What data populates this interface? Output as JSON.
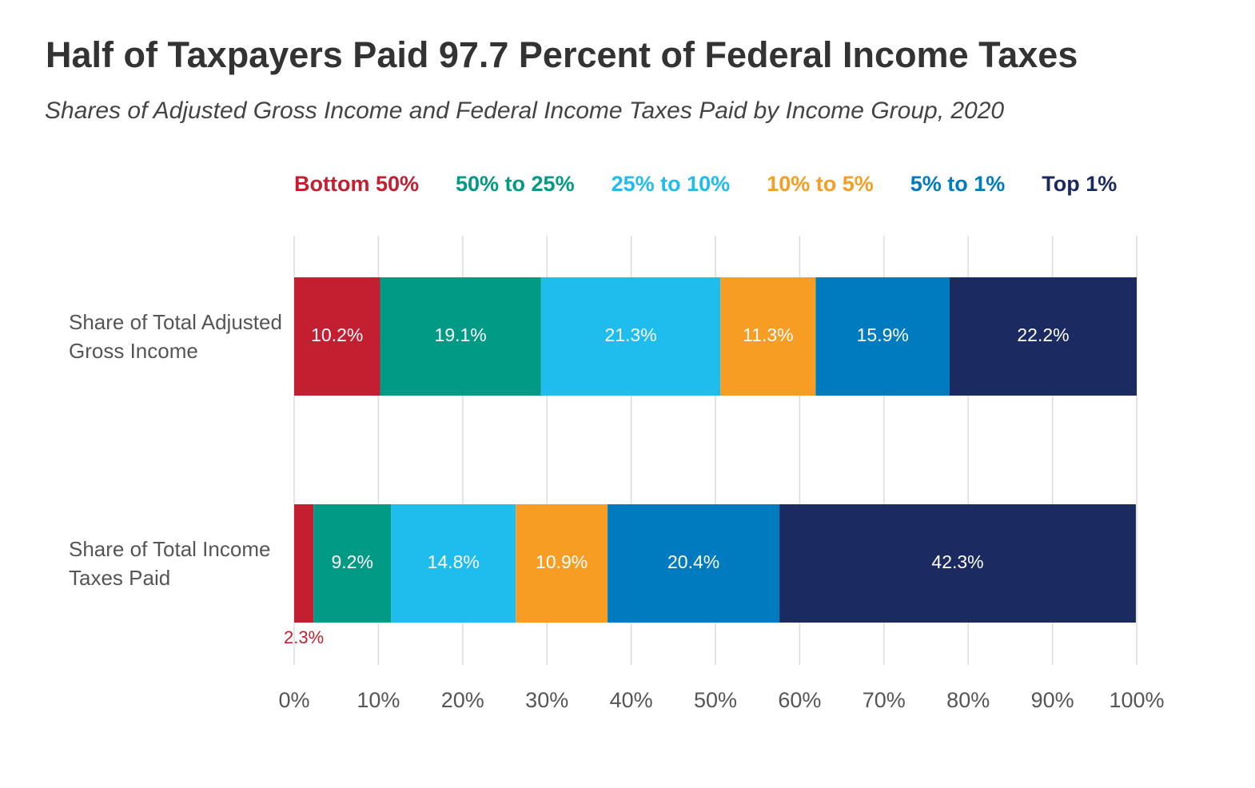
{
  "chart_data": {
    "type": "stacked-bar-horizontal",
    "title": "Half of Taxpayers Paid 97.7 Percent of Federal Income Taxes",
    "subtitle": "Shares of Adjusted Gross Income and Federal Income Taxes Paid by Income Group, 2020",
    "categories": [
      "Share of Total Adjusted Gross Income",
      "Share of Total Income Taxes Paid"
    ],
    "series": [
      {
        "name": "Bottom 50%",
        "color": "#c41f30",
        "values": [
          10.2,
          2.3
        ],
        "value_labels": [
          "10.2%",
          "2.3%"
        ]
      },
      {
        "name": "50% to 25%",
        "color": "#009a85",
        "values": [
          19.1,
          9.2
        ],
        "value_labels": [
          "19.1%",
          "9.2%"
        ]
      },
      {
        "name": "25% to 10%",
        "color": "#1fbdee",
        "values": [
          21.3,
          14.8
        ],
        "value_labels": [
          "21.3%",
          "14.8%"
        ]
      },
      {
        "name": "10% to 5%",
        "color": "#f79d23",
        "values": [
          11.3,
          10.9
        ],
        "value_labels": [
          "11.3%",
          "10.9%"
        ]
      },
      {
        "name": "5% to 1%",
        "color": "#007bc0",
        "values": [
          15.9,
          20.4
        ],
        "value_labels": [
          "15.9%",
          "20.4%"
        ]
      },
      {
        "name": "Top 1%",
        "color": "#1b2b61",
        "values": [
          22.2,
          42.3
        ],
        "value_labels": [
          "22.2%",
          "42.3%"
        ]
      }
    ],
    "xlim": [
      0,
      100
    ],
    "xticks": [
      {
        "value": 0,
        "label": "0%"
      },
      {
        "value": 10,
        "label": "10%"
      },
      {
        "value": 20,
        "label": "20%"
      },
      {
        "value": 30,
        "label": "30%"
      },
      {
        "value": 40,
        "label": "40%"
      },
      {
        "value": 50,
        "label": "50%"
      },
      {
        "value": 60,
        "label": "60%"
      },
      {
        "value": 70,
        "label": "70%"
      },
      {
        "value": 80,
        "label": "80%"
      },
      {
        "value": 90,
        "label": "90%"
      },
      {
        "value": 100,
        "label": "100%"
      }
    ],
    "grid": true,
    "legend": "top"
  }
}
